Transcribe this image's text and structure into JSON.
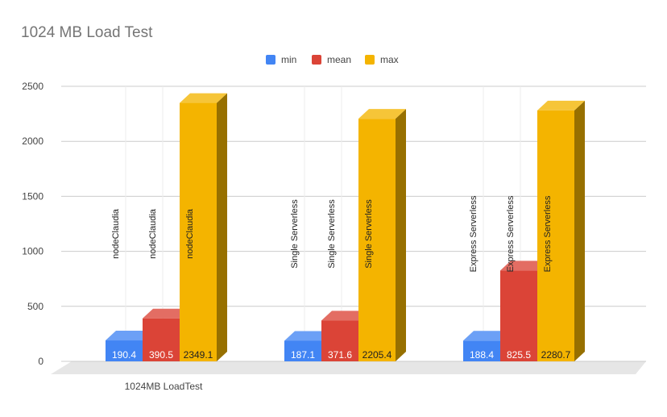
{
  "chart_data": {
    "type": "bar",
    "title": "1024 MB Load Test",
    "categories": [
      "nodeClaudia",
      "Single Serverless",
      "Express Serverless"
    ],
    "xlabel": "1024MB LoadTest",
    "ylabel": "",
    "ylim": [
      0,
      2500
    ],
    "yticks": [
      0,
      500,
      1000,
      1500,
      2000,
      2500
    ],
    "grid": true,
    "legend_position": "top-center",
    "series": [
      {
        "name": "min",
        "color": "#4285f4",
        "values": [
          190.4,
          187.1,
          188.4
        ],
        "labels": [
          "190.4",
          "187.1",
          "188.4"
        ]
      },
      {
        "name": "mean",
        "color": "#db4437",
        "values": [
          390.5,
          371.6,
          825.5
        ],
        "labels": [
          "390.5",
          "371.6",
          "825.5"
        ]
      },
      {
        "name": "max",
        "color": "#f4b400",
        "values": [
          2349.1,
          2205.4,
          2280.7
        ],
        "labels": [
          "2349.1",
          "2205.4",
          "2280.7"
        ]
      }
    ]
  }
}
